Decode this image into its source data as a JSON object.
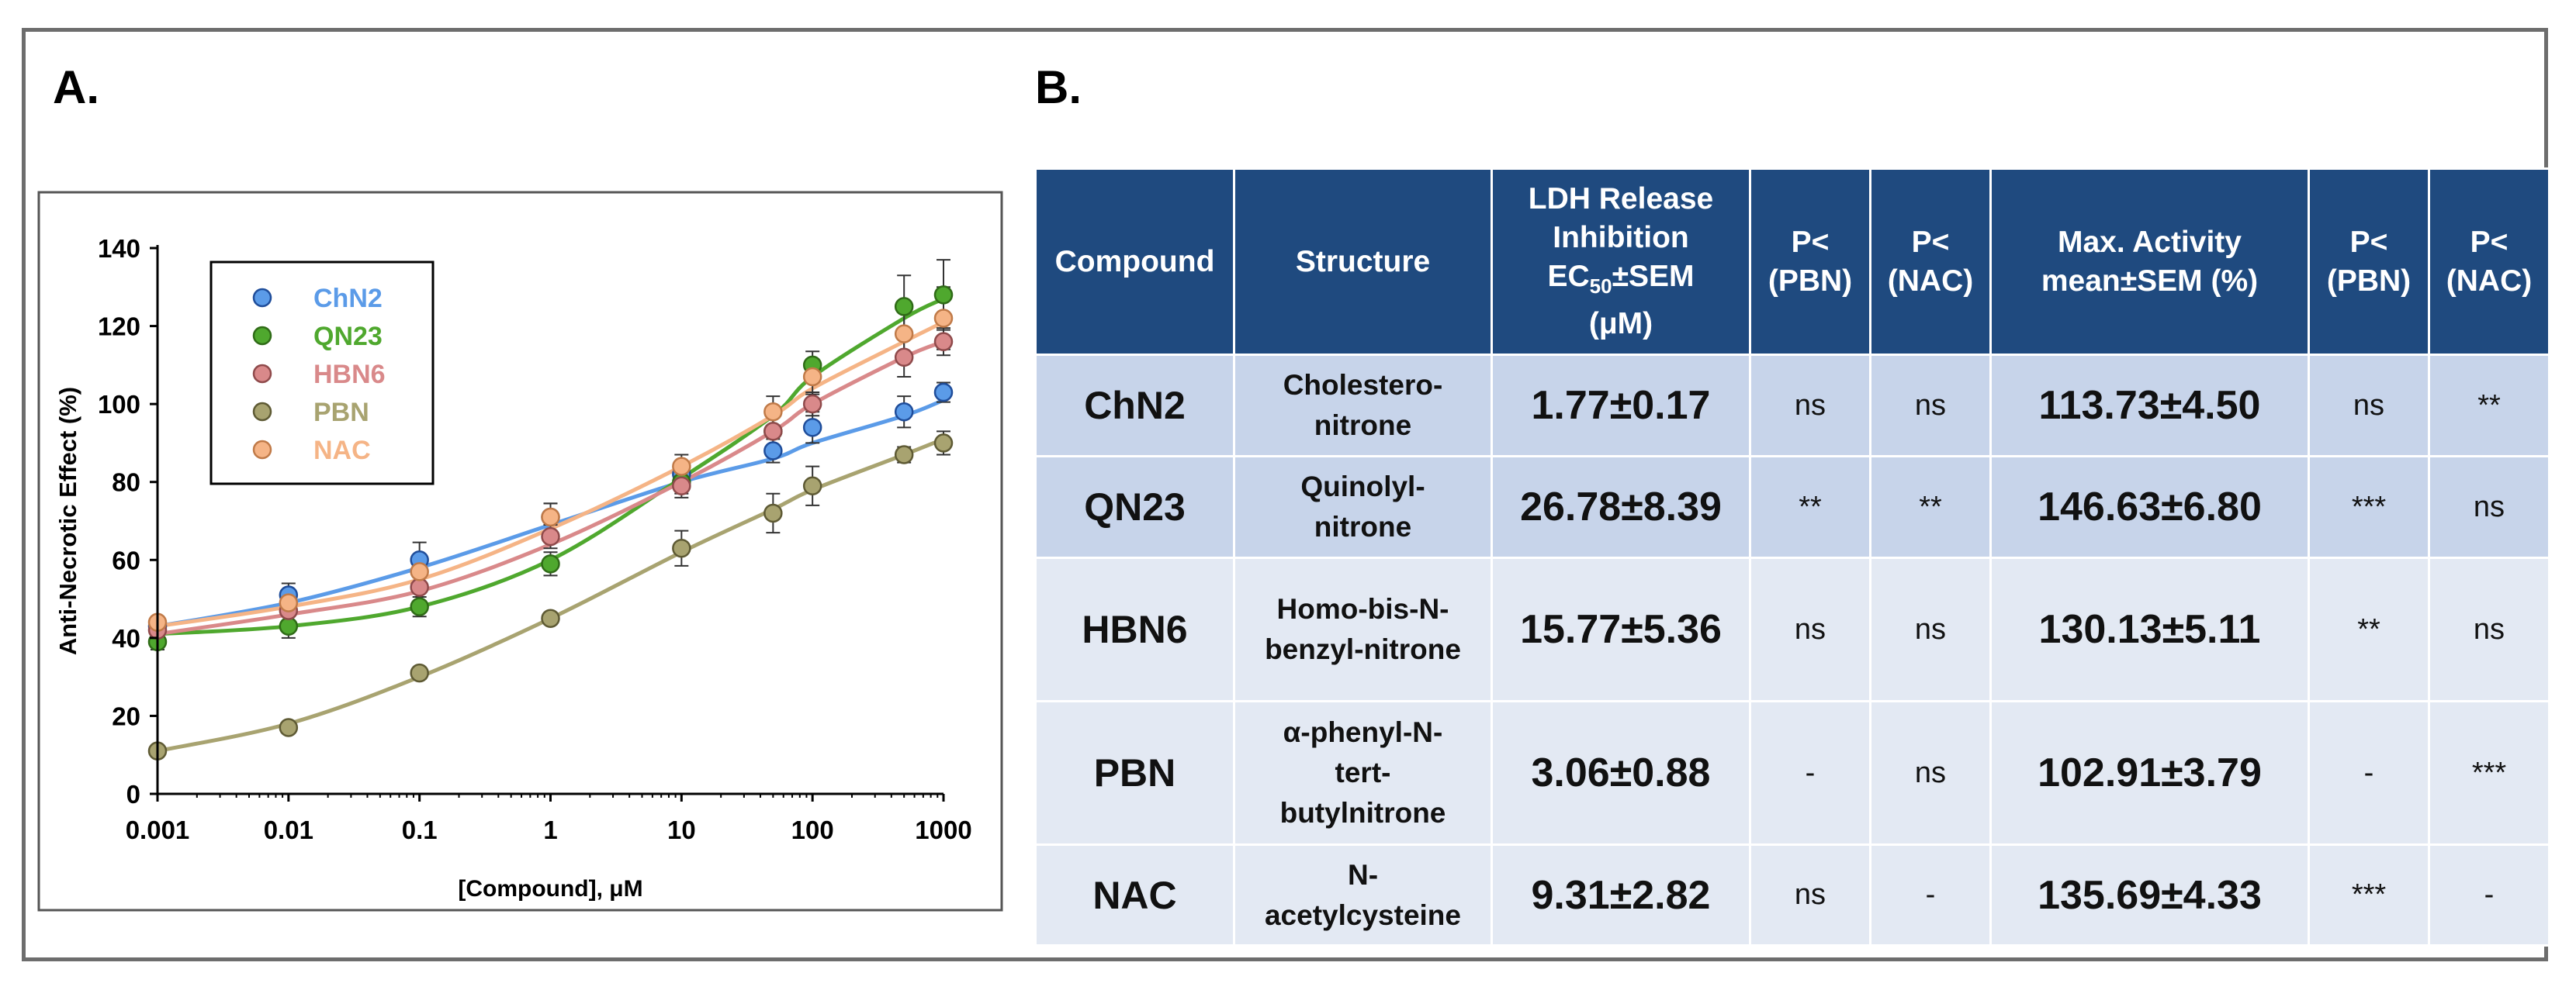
{
  "panels": {
    "a_label": "A.",
    "b_label": "B."
  },
  "colors": {
    "ChN2": "#5b9be8",
    "QN23": "#4fa82e",
    "HBN6": "#d9898a",
    "PBN": "#a8a370",
    "NAC": "#f5b486",
    "table_header_bg": "#1f4a7f"
  },
  "chart_data": {
    "type": "scatter",
    "title": "",
    "xlabel": "[Compound], μM",
    "ylabel": "Anti-Necrotic Effect (%)",
    "xscale": "log",
    "xlim": [
      0.001,
      1000
    ],
    "ylim": [
      0,
      140
    ],
    "xticks": [
      0.001,
      0.01,
      0.1,
      1,
      10,
      100,
      1000
    ],
    "xtick_labels": [
      "0.001",
      "0.01",
      "0.1",
      "1",
      "10",
      "100",
      "1000"
    ],
    "yticks": [
      0,
      20,
      40,
      60,
      80,
      100,
      120,
      140
    ],
    "ytick_labels": [
      "0",
      "20",
      "40",
      "60",
      "80",
      "100",
      "120",
      "140"
    ],
    "grid": false,
    "legend_position": "top-left",
    "x": [
      0.001,
      0.01,
      0.1,
      1,
      10,
      50,
      100,
      500,
      1000
    ],
    "series": [
      {
        "name": "ChN2",
        "color": "#5b9be8",
        "edge": "#1f4d9a",
        "values": [
          43,
          51,
          60,
          71,
          82,
          88,
          94,
          98,
          103
        ],
        "errors": [
          1.5,
          3,
          4.5,
          3.5,
          3,
          3,
          4,
          4,
          2.5
        ]
      },
      {
        "name": "QN23",
        "color": "#4fa82e",
        "edge": "#2f6b17",
        "values": [
          39,
          43,
          48,
          59,
          80,
          93,
          110,
          125,
          128
        ],
        "errors": [
          2,
          3,
          2.5,
          3,
          3,
          4,
          3.5,
          8,
          9
        ]
      },
      {
        "name": "HBN6",
        "color": "#d9898a",
        "edge": "#8f4a4b",
        "values": [
          42,
          47,
          53,
          66,
          79,
          93,
          100,
          112,
          116
        ],
        "errors": [
          1.5,
          3,
          3.5,
          3,
          3,
          3.5,
          3,
          5,
          3.5
        ]
      },
      {
        "name": "PBN",
        "color": "#a8a370",
        "edge": "#5e5a34",
        "values": [
          11,
          17,
          31,
          45,
          63,
          72,
          79,
          87,
          90
        ],
        "errors": [
          1,
          1,
          1.5,
          1.5,
          4.5,
          5,
          5,
          2,
          3
        ]
      },
      {
        "name": "NAC",
        "color": "#f5b486",
        "edge": "#c07a48",
        "values": [
          44,
          49,
          57,
          71,
          84,
          98,
          107,
          118,
          122
        ],
        "errors": [
          1.5,
          2.5,
          3,
          3.5,
          3,
          4,
          4.5,
          6,
          8
        ]
      }
    ],
    "fit_curves": {
      "ChN2": [
        43,
        49,
        58,
        69,
        80,
        86,
        90,
        97,
        101
      ],
      "QN23": [
        41,
        43,
        48,
        60,
        81,
        97,
        107,
        122,
        127
      ],
      "HBN6": [
        41,
        46,
        52,
        64,
        80,
        93,
        100,
        112,
        116
      ],
      "PBN": [
        11,
        18,
        30,
        45,
        62,
        73,
        78,
        87,
        91
      ],
      "NAC": [
        43,
        48,
        55,
        68,
        84,
        97,
        104,
        116,
        121
      ]
    }
  },
  "table": {
    "headers": {
      "compound": "Compound",
      "structure": "Structure",
      "ldh_line1": "LDH Release",
      "ldh_line2": "Inhibition",
      "ldh_ec": "EC",
      "ldh_sub": "50",
      "ldh_sem": "±SEM",
      "ldh_unit": "(μM)",
      "p_pbn_1_line1": "P<",
      "p_pbn_1_line2": "(PBN)",
      "p_nac_1_line1": "P<",
      "p_nac_1_line2": "(NAC)",
      "max_line1": "Max. Activity",
      "max_line2": "mean±SEM (%)",
      "p_pbn_2_line1": "P<",
      "p_pbn_2_line2": "(PBN)",
      "p_nac_2_line1": "P<",
      "p_nac_2_line2": "(NAC)"
    },
    "rows": [
      {
        "compound": "ChN2",
        "structure": [
          "Cholestero-",
          "nitrone"
        ],
        "ec50": "1.77±0.17",
        "p_pbn_1": "ns",
        "p_nac_1": "ns",
        "max": "113.73±4.50",
        "p_pbn_2": "ns",
        "p_nac_2": "**"
      },
      {
        "compound": "QN23",
        "structure": [
          "Quinolyl-",
          "nitrone"
        ],
        "ec50": "26.78±8.39",
        "p_pbn_1": "**",
        "p_nac_1": "**",
        "max": "146.63±6.80",
        "p_pbn_2": "***",
        "p_nac_2": "ns"
      },
      {
        "compound": "HBN6",
        "structure": [
          "Homo-bis-N-",
          "benzyl-nitrone"
        ],
        "ec50": "15.77±5.36",
        "p_pbn_1": "ns",
        "p_nac_1": "ns",
        "max": "130.13±5.11",
        "p_pbn_2": "**",
        "p_nac_2": "ns"
      },
      {
        "compound": "PBN",
        "structure": [
          "α-phenyl-N-",
          "tert-",
          "butylnitrone"
        ],
        "ec50": "3.06±0.88",
        "p_pbn_1": "-",
        "p_nac_1": "ns",
        "max": "102.91±3.79",
        "p_pbn_2": "-",
        "p_nac_2": "***"
      },
      {
        "compound": "NAC",
        "structure": [
          "N-",
          "acetylcysteine"
        ],
        "ec50": "9.31±2.82",
        "p_pbn_1": "ns",
        "p_nac_1": "-",
        "max": "135.69±4.33",
        "p_pbn_2": "***",
        "p_nac_2": "-"
      }
    ]
  }
}
